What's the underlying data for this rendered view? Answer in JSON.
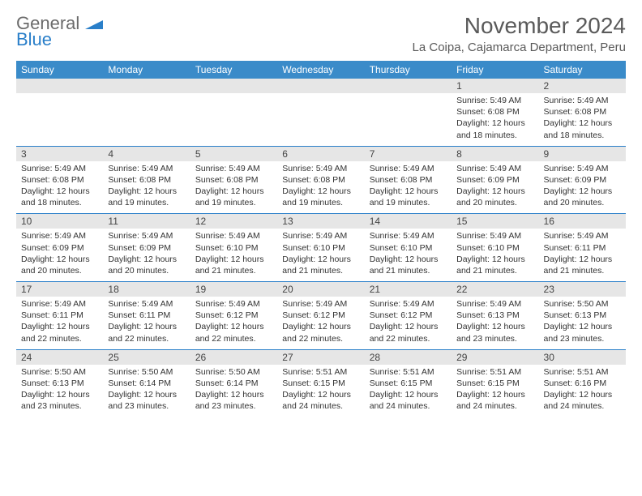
{
  "logo": {
    "part1": "General",
    "part2": "Blue"
  },
  "title": "November 2024",
  "location": "La Coipa, Cajamarca Department, Peru",
  "colors": {
    "header_bg": "#3a8bc9",
    "header_text": "#ffffff",
    "daynum_bg": "#e6e6e6",
    "row_border": "#2a7fc9",
    "logo_gray": "#6b6b6b",
    "logo_blue": "#2a7fc9",
    "title_color": "#5a5a5a"
  },
  "day_headers": [
    "Sunday",
    "Monday",
    "Tuesday",
    "Wednesday",
    "Thursday",
    "Friday",
    "Saturday"
  ],
  "weeks": [
    [
      null,
      null,
      null,
      null,
      null,
      {
        "n": "1",
        "sr": "Sunrise: 5:49 AM",
        "ss": "Sunset: 6:08 PM",
        "d1": "Daylight: 12 hours",
        "d2": "and 18 minutes."
      },
      {
        "n": "2",
        "sr": "Sunrise: 5:49 AM",
        "ss": "Sunset: 6:08 PM",
        "d1": "Daylight: 12 hours",
        "d2": "and 18 minutes."
      }
    ],
    [
      {
        "n": "3",
        "sr": "Sunrise: 5:49 AM",
        "ss": "Sunset: 6:08 PM",
        "d1": "Daylight: 12 hours",
        "d2": "and 18 minutes."
      },
      {
        "n": "4",
        "sr": "Sunrise: 5:49 AM",
        "ss": "Sunset: 6:08 PM",
        "d1": "Daylight: 12 hours",
        "d2": "and 19 minutes."
      },
      {
        "n": "5",
        "sr": "Sunrise: 5:49 AM",
        "ss": "Sunset: 6:08 PM",
        "d1": "Daylight: 12 hours",
        "d2": "and 19 minutes."
      },
      {
        "n": "6",
        "sr": "Sunrise: 5:49 AM",
        "ss": "Sunset: 6:08 PM",
        "d1": "Daylight: 12 hours",
        "d2": "and 19 minutes."
      },
      {
        "n": "7",
        "sr": "Sunrise: 5:49 AM",
        "ss": "Sunset: 6:08 PM",
        "d1": "Daylight: 12 hours",
        "d2": "and 19 minutes."
      },
      {
        "n": "8",
        "sr": "Sunrise: 5:49 AM",
        "ss": "Sunset: 6:09 PM",
        "d1": "Daylight: 12 hours",
        "d2": "and 20 minutes."
      },
      {
        "n": "9",
        "sr": "Sunrise: 5:49 AM",
        "ss": "Sunset: 6:09 PM",
        "d1": "Daylight: 12 hours",
        "d2": "and 20 minutes."
      }
    ],
    [
      {
        "n": "10",
        "sr": "Sunrise: 5:49 AM",
        "ss": "Sunset: 6:09 PM",
        "d1": "Daylight: 12 hours",
        "d2": "and 20 minutes."
      },
      {
        "n": "11",
        "sr": "Sunrise: 5:49 AM",
        "ss": "Sunset: 6:09 PM",
        "d1": "Daylight: 12 hours",
        "d2": "and 20 minutes."
      },
      {
        "n": "12",
        "sr": "Sunrise: 5:49 AM",
        "ss": "Sunset: 6:10 PM",
        "d1": "Daylight: 12 hours",
        "d2": "and 21 minutes."
      },
      {
        "n": "13",
        "sr": "Sunrise: 5:49 AM",
        "ss": "Sunset: 6:10 PM",
        "d1": "Daylight: 12 hours",
        "d2": "and 21 minutes."
      },
      {
        "n": "14",
        "sr": "Sunrise: 5:49 AM",
        "ss": "Sunset: 6:10 PM",
        "d1": "Daylight: 12 hours",
        "d2": "and 21 minutes."
      },
      {
        "n": "15",
        "sr": "Sunrise: 5:49 AM",
        "ss": "Sunset: 6:10 PM",
        "d1": "Daylight: 12 hours",
        "d2": "and 21 minutes."
      },
      {
        "n": "16",
        "sr": "Sunrise: 5:49 AM",
        "ss": "Sunset: 6:11 PM",
        "d1": "Daylight: 12 hours",
        "d2": "and 21 minutes."
      }
    ],
    [
      {
        "n": "17",
        "sr": "Sunrise: 5:49 AM",
        "ss": "Sunset: 6:11 PM",
        "d1": "Daylight: 12 hours",
        "d2": "and 22 minutes."
      },
      {
        "n": "18",
        "sr": "Sunrise: 5:49 AM",
        "ss": "Sunset: 6:11 PM",
        "d1": "Daylight: 12 hours",
        "d2": "and 22 minutes."
      },
      {
        "n": "19",
        "sr": "Sunrise: 5:49 AM",
        "ss": "Sunset: 6:12 PM",
        "d1": "Daylight: 12 hours",
        "d2": "and 22 minutes."
      },
      {
        "n": "20",
        "sr": "Sunrise: 5:49 AM",
        "ss": "Sunset: 6:12 PM",
        "d1": "Daylight: 12 hours",
        "d2": "and 22 minutes."
      },
      {
        "n": "21",
        "sr": "Sunrise: 5:49 AM",
        "ss": "Sunset: 6:12 PM",
        "d1": "Daylight: 12 hours",
        "d2": "and 22 minutes."
      },
      {
        "n": "22",
        "sr": "Sunrise: 5:49 AM",
        "ss": "Sunset: 6:13 PM",
        "d1": "Daylight: 12 hours",
        "d2": "and 23 minutes."
      },
      {
        "n": "23",
        "sr": "Sunrise: 5:50 AM",
        "ss": "Sunset: 6:13 PM",
        "d1": "Daylight: 12 hours",
        "d2": "and 23 minutes."
      }
    ],
    [
      {
        "n": "24",
        "sr": "Sunrise: 5:50 AM",
        "ss": "Sunset: 6:13 PM",
        "d1": "Daylight: 12 hours",
        "d2": "and 23 minutes."
      },
      {
        "n": "25",
        "sr": "Sunrise: 5:50 AM",
        "ss": "Sunset: 6:14 PM",
        "d1": "Daylight: 12 hours",
        "d2": "and 23 minutes."
      },
      {
        "n": "26",
        "sr": "Sunrise: 5:50 AM",
        "ss": "Sunset: 6:14 PM",
        "d1": "Daylight: 12 hours",
        "d2": "and 23 minutes."
      },
      {
        "n": "27",
        "sr": "Sunrise: 5:51 AM",
        "ss": "Sunset: 6:15 PM",
        "d1": "Daylight: 12 hours",
        "d2": "and 24 minutes."
      },
      {
        "n": "28",
        "sr": "Sunrise: 5:51 AM",
        "ss": "Sunset: 6:15 PM",
        "d1": "Daylight: 12 hours",
        "d2": "and 24 minutes."
      },
      {
        "n": "29",
        "sr": "Sunrise: 5:51 AM",
        "ss": "Sunset: 6:15 PM",
        "d1": "Daylight: 12 hours",
        "d2": "and 24 minutes."
      },
      {
        "n": "30",
        "sr": "Sunrise: 5:51 AM",
        "ss": "Sunset: 6:16 PM",
        "d1": "Daylight: 12 hours",
        "d2": "and 24 minutes."
      }
    ]
  ]
}
